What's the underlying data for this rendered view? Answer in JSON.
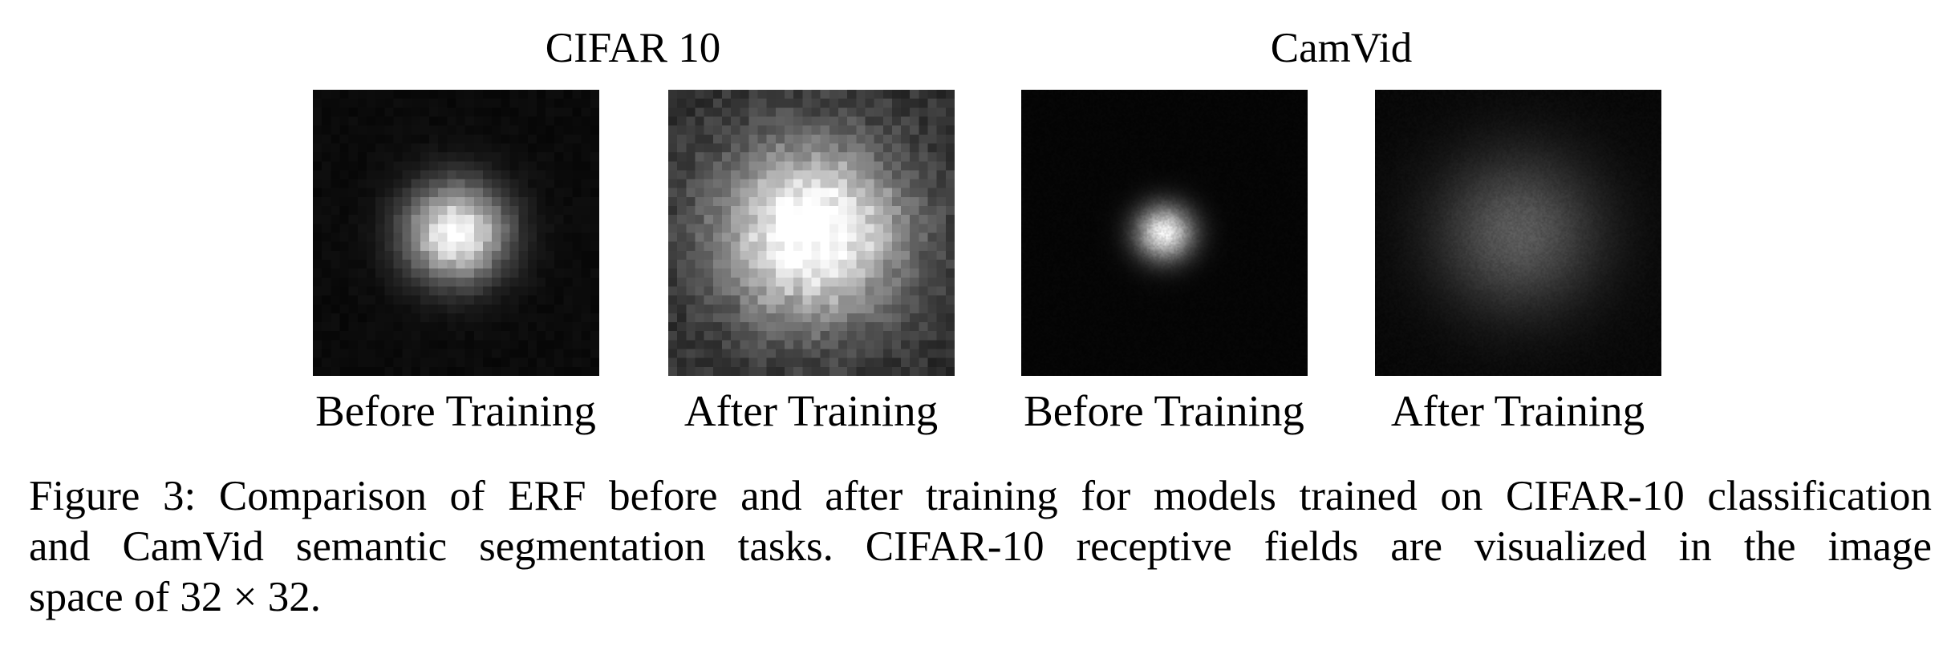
{
  "figure": {
    "groups": [
      {
        "title": "CIFAR 10"
      },
      {
        "title": "CamVid"
      }
    ],
    "panels": [
      {
        "label": "Before Training",
        "dataset": "CIFAR 10",
        "grid": 32,
        "peak": 1.0,
        "spread": 0.12,
        "background": 0.04
      },
      {
        "label": "After Training",
        "dataset": "CIFAR 10",
        "grid": 32,
        "peak": 0.95,
        "spread": 0.22,
        "background": 0.18
      },
      {
        "label": "Before Training",
        "dataset": "CamVid",
        "grid": 180,
        "peak": 0.9,
        "spread": 0.07,
        "background": 0.02
      },
      {
        "label": "After Training",
        "dataset": "CamVid",
        "grid": 180,
        "peak": 0.32,
        "spread": 0.2,
        "background": 0.03
      }
    ],
    "caption_lines": [
      "Figure 3: Comparison of ERF before and after training for models trained on CIFAR-10 classification",
      "and CamVid semantic segmentation tasks. CIFAR-10 receptive fields are visualized in the image",
      "space of 32 × 32."
    ]
  }
}
